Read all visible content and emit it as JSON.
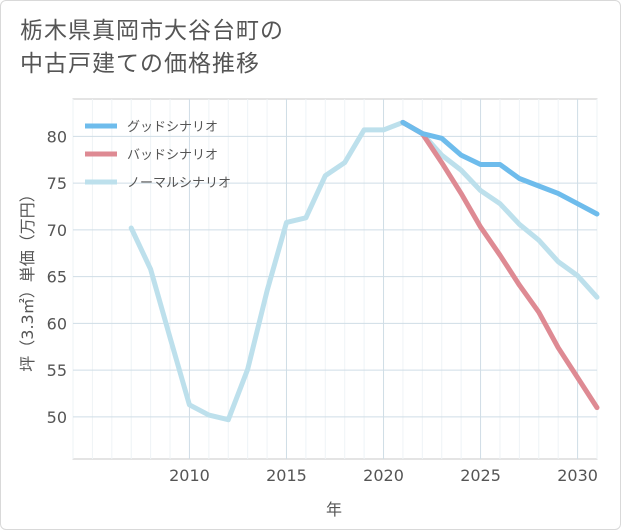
{
  "title_line1": "栃木県真岡市大谷台町の",
  "title_line2": "中古戸建ての価格推移",
  "chart_data": {
    "type": "line",
    "xlabel": "年",
    "ylabel": "坪（3.3㎡）単価（万円）",
    "xlim": [
      2004.0,
      2031.0
    ],
    "ylim": [
      45.5,
      84.0
    ],
    "xticks": [
      2010,
      2015,
      2020,
      2025,
      2030
    ],
    "yticks": [
      50,
      55,
      60,
      65,
      70,
      75,
      80
    ],
    "grid": true,
    "legend_position": "top-left",
    "series": [
      {
        "name": "グッドシナリオ",
        "color": "#6ebcec",
        "x": [
          2021,
          2022,
          2023,
          2024,
          2025,
          2026,
          2027,
          2028,
          2029,
          2030,
          2031
        ],
        "y": [
          81.5,
          80.3,
          79.8,
          78.0,
          77.0,
          77.0,
          75.5,
          74.7,
          73.9,
          72.8,
          71.7
        ]
      },
      {
        "name": "バッドシナリオ",
        "color": "#de8a93",
        "x": [
          2021,
          2022,
          2023,
          2024,
          2025,
          2026,
          2027,
          2028,
          2029,
          2030,
          2031
        ],
        "y": [
          81.5,
          80.3,
          77.2,
          73.9,
          70.3,
          67.3,
          64.1,
          61.2,
          57.4,
          54.2,
          51.0
        ]
      },
      {
        "name": "ノーマルシナリオ",
        "color": "#bde0ec",
        "x": [
          2007,
          2008,
          2009,
          2010,
          2011,
          2012,
          2013,
          2014,
          2015,
          2016,
          2017,
          2018,
          2019,
          2020,
          2021,
          2022,
          2023,
          2024,
          2025,
          2026,
          2027,
          2028,
          2029,
          2030,
          2031
        ],
        "y": [
          70.2,
          65.8,
          58.5,
          51.3,
          50.2,
          49.7,
          55.1,
          63.5,
          70.8,
          71.3,
          75.8,
          77.2,
          80.7,
          80.7,
          81.5,
          80.3,
          78.0,
          76.4,
          74.2,
          72.8,
          70.6,
          68.9,
          66.6,
          65.1,
          62.8
        ]
      }
    ]
  }
}
